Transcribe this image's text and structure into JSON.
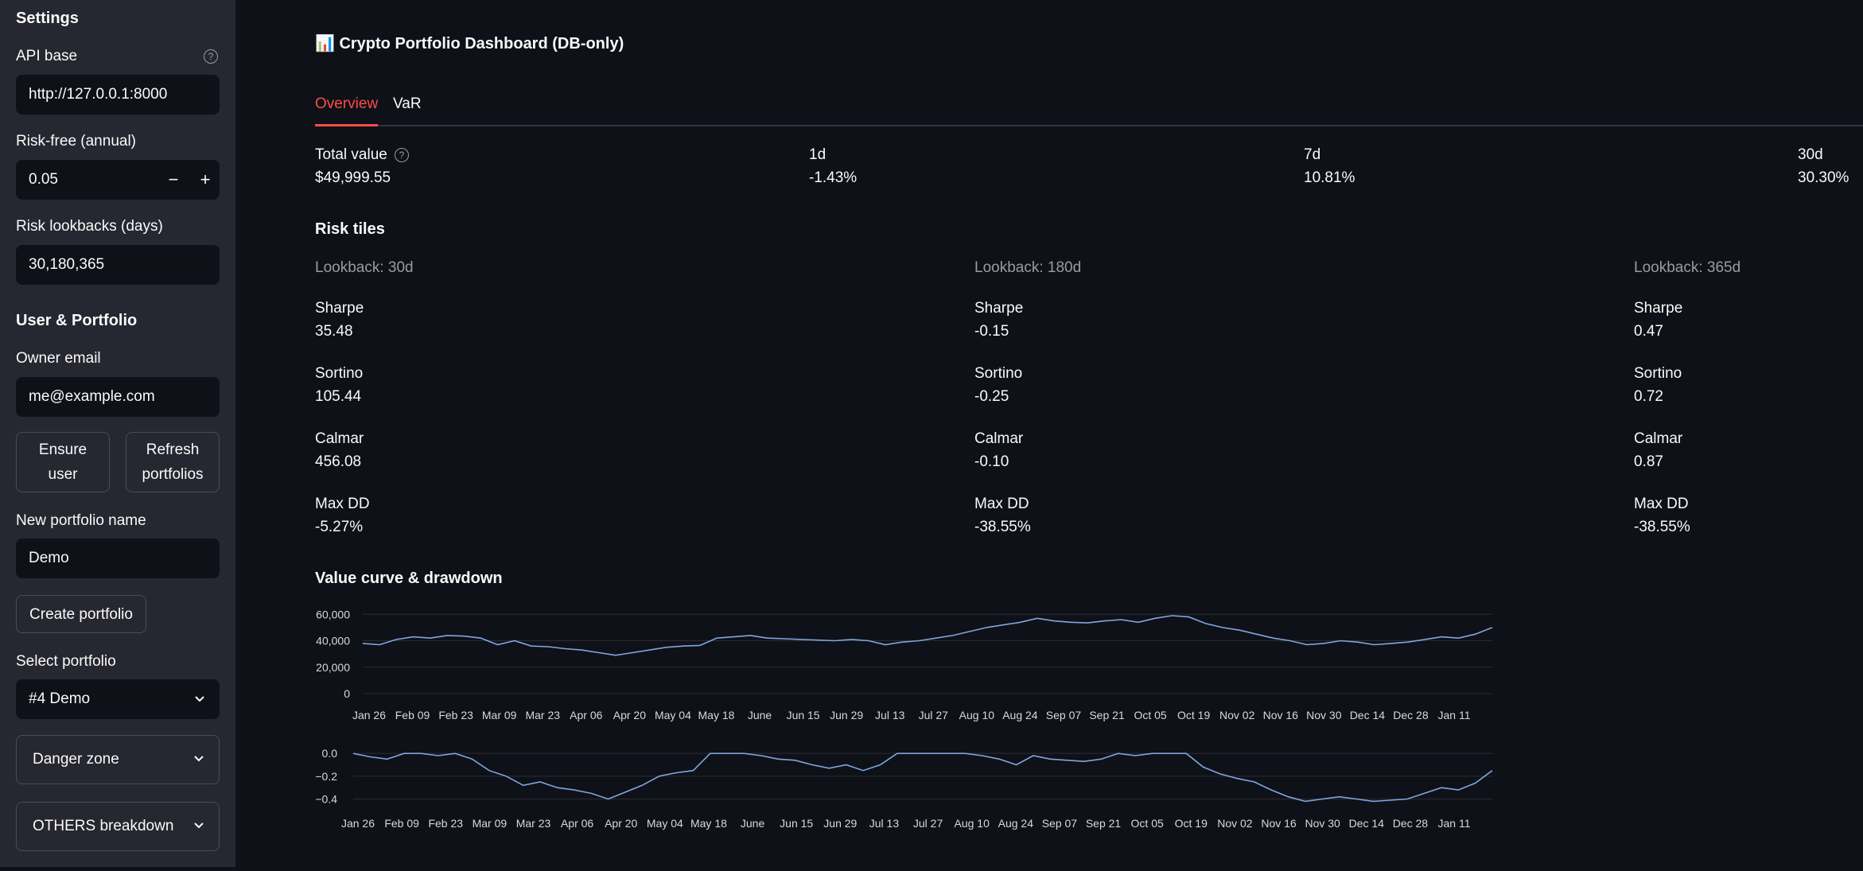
{
  "sidebar": {
    "settings_heading": "Settings",
    "api_base": {
      "label": "API base",
      "value": "http://127.0.0.1:8000"
    },
    "risk_free": {
      "label": "Risk-free (annual)",
      "value": "0.05",
      "minus": "−",
      "plus": "+"
    },
    "lookbacks": {
      "label": "Risk lookbacks (days)",
      "value": "30,180,365"
    },
    "user_portfolio_heading": "User & Portfolio",
    "owner_email": {
      "label": "Owner email",
      "value": "me@example.com"
    },
    "ensure_user_button": "Ensure user",
    "refresh_portfolios_button": "Refresh portfolios",
    "new_portfolio": {
      "label": "New portfolio name",
      "value": "Demo"
    },
    "create_portfolio_button": "Create portfolio",
    "select_portfolio": {
      "label": "Select portfolio",
      "value": "#4 Demo"
    },
    "danger_zone": "Danger zone",
    "others_breakdown": "OTHERS breakdown"
  },
  "main": {
    "title": "📊 Crypto Portfolio Dashboard (DB-only)",
    "tabs": [
      {
        "label": "Overview",
        "active": true
      },
      {
        "label": "VaR",
        "active": false
      }
    ],
    "metrics": [
      {
        "label": "Total value",
        "value": "$49,999.55"
      },
      {
        "label": "1d",
        "value": "-1.43%"
      },
      {
        "label": "7d",
        "value": "10.81%"
      },
      {
        "label": "30d",
        "value": "30.30%"
      }
    ],
    "risk_tiles_heading": "Risk tiles",
    "risk_tiles": [
      {
        "lookback": "Lookback: 30d",
        "sharpe_label": "Sharpe",
        "sharpe": "35.48",
        "sortino_label": "Sortino",
        "sortino": "105.44",
        "calmar_label": "Calmar",
        "calmar": "456.08",
        "maxdd_label": "Max DD",
        "maxdd": "-5.27%"
      },
      {
        "lookback": "Lookback: 180d",
        "sharpe_label": "Sharpe",
        "sharpe": "-0.15",
        "sortino_label": "Sortino",
        "sortino": "-0.25",
        "calmar_label": "Calmar",
        "calmar": "-0.10",
        "maxdd_label": "Max DD",
        "maxdd": "-38.55%"
      },
      {
        "lookback": "Lookback: 365d",
        "sharpe_label": "Sharpe",
        "sharpe": "0.47",
        "sortino_label": "Sortino",
        "sortino": "0.72",
        "calmar_label": "Calmar",
        "calmar": "0.87",
        "maxdd_label": "Max DD",
        "maxdd": "-38.55%"
      }
    ],
    "chart_heading": "Value curve & drawdown"
  },
  "chart_data": [
    {
      "type": "line",
      "title": "",
      "ylim": [
        0,
        65000
      ],
      "yticks": [
        "60,000",
        "40,000",
        "20,000",
        "0"
      ],
      "ytick_values": [
        60000,
        40000,
        20000,
        0
      ],
      "xticks": [
        "Jan 26",
        "Feb 09",
        "Feb 23",
        "Mar 09",
        "Mar 23",
        "Apr 06",
        "Apr 20",
        "May 04",
        "May 18",
        "June",
        "Jun 15",
        "Jun 29",
        "Jul 13",
        "Jul 27",
        "Aug 10",
        "Aug 24",
        "Sep 07",
        "Sep 21",
        "Oct 05",
        "Oct 19",
        "Nov 02",
        "Nov 16",
        "Nov 30",
        "Dec 14",
        "Dec 28",
        "Jan 11"
      ],
      "line_color": "#7ea6e0",
      "series": [
        {
          "values": [
            38000,
            37000,
            41000,
            43000,
            42000,
            44000,
            43500,
            42000,
            37000,
            40000,
            36000,
            35500,
            34000,
            33000,
            31000,
            29000,
            31000,
            33000,
            35000,
            36000,
            36500,
            42000,
            43000,
            44000,
            42000,
            41500,
            41000,
            40500,
            40000,
            41000,
            40000,
            37000,
            39000,
            40000,
            42000,
            44000,
            47000,
            50000,
            52000,
            54000,
            57000,
            55000,
            54000,
            53500,
            55000,
            56000,
            54000,
            57000,
            59000,
            58000,
            53000,
            50000,
            48000,
            45000,
            42000,
            40000,
            37000,
            38000,
            40000,
            39000,
            37000,
            38000,
            39000,
            41000,
            43000,
            42000,
            45000,
            50000
          ]
        }
      ]
    },
    {
      "type": "line",
      "title": "",
      "ylim": [
        -0.48,
        0.05
      ],
      "yticks": [
        "0.0",
        "−0.2",
        "−0.4"
      ],
      "ytick_values": [
        0.0,
        -0.2,
        -0.4
      ],
      "xticks": [
        "Jan 26",
        "Feb 09",
        "Feb 23",
        "Mar 09",
        "Mar 23",
        "Apr 06",
        "Apr 20",
        "May 04",
        "May 18",
        "June",
        "Jun 15",
        "Jun 29",
        "Jul 13",
        "Jul 27",
        "Aug 10",
        "Aug 24",
        "Sep 07",
        "Sep 21",
        "Oct 05",
        "Oct 19",
        "Nov 02",
        "Nov 16",
        "Nov 30",
        "Dec 14",
        "Dec 28",
        "Jan 11"
      ],
      "line_color": "#7ea6e0",
      "series": [
        {
          "values": [
            0.0,
            -0.03,
            -0.05,
            0.0,
            0.0,
            -0.02,
            0.0,
            -0.05,
            -0.15,
            -0.2,
            -0.28,
            -0.25,
            -0.3,
            -0.32,
            -0.35,
            -0.4,
            -0.34,
            -0.28,
            -0.2,
            -0.17,
            -0.15,
            0.0,
            0.0,
            0.0,
            -0.02,
            -0.05,
            -0.06,
            -0.1,
            -0.13,
            -0.1,
            -0.15,
            -0.1,
            0.0,
            0.0,
            0.0,
            0.0,
            0.0,
            -0.02,
            -0.05,
            -0.1,
            -0.02,
            -0.05,
            -0.06,
            -0.07,
            -0.05,
            0.0,
            -0.02,
            0.0,
            0.0,
            0.0,
            -0.12,
            -0.18,
            -0.22,
            -0.25,
            -0.32,
            -0.38,
            -0.42,
            -0.4,
            -0.38,
            -0.4,
            -0.42,
            -0.41,
            -0.4,
            -0.35,
            -0.3,
            -0.32,
            -0.26,
            -0.15
          ]
        }
      ]
    }
  ]
}
